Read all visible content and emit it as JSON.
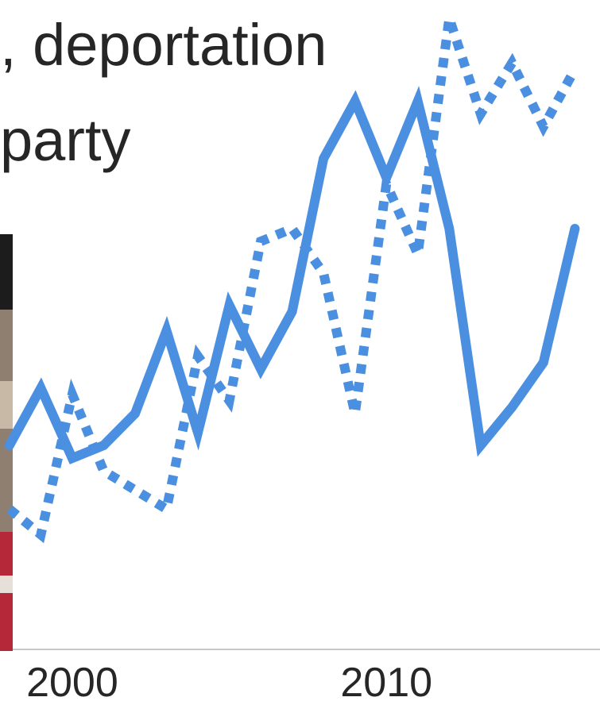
{
  "headline": {
    "line1": ", deportation",
    "line2": "party"
  },
  "photo": {
    "icon": "photo-strip-icon",
    "colors": [
      "#1c1c1c",
      "#8f7f70",
      "#c8b8a6",
      "#b4283a",
      "#e6e0d8"
    ]
  },
  "colors": {
    "series": "#4a8fe0",
    "axis": "#c8c8c8",
    "tick_text": "#262626"
  },
  "chart_data": {
    "type": "line",
    "title": "",
    "xlabel": "",
    "ylabel": "",
    "x_ticks": [
      "2000",
      "2010"
    ],
    "xlim": [
      1997.7,
      2016.8
    ],
    "ylim": [
      0,
      100
    ],
    "grid": false,
    "legend": "none",
    "series": [
      {
        "style": "solid",
        "points": [
          {
            "x": 1998,
            "y": 32
          },
          {
            "x": 1999,
            "y": 41
          },
          {
            "x": 2000,
            "y": 30
          },
          {
            "x": 2001,
            "y": 32
          },
          {
            "x": 2002,
            "y": 37
          },
          {
            "x": 2003,
            "y": 50
          },
          {
            "x": 2004,
            "y": 34
          },
          {
            "x": 2005,
            "y": 54
          },
          {
            "x": 2006,
            "y": 44
          },
          {
            "x": 2007,
            "y": 53
          },
          {
            "x": 2008,
            "y": 77
          },
          {
            "x": 2009,
            "y": 86
          },
          {
            "x": 2010,
            "y": 74
          },
          {
            "x": 2011,
            "y": 86
          },
          {
            "x": 2012,
            "y": 66
          },
          {
            "x": 2013,
            "y": 32
          },
          {
            "x": 2014,
            "y": 38
          },
          {
            "x": 2015,
            "y": 45
          },
          {
            "x": 2016,
            "y": 66
          }
        ]
      },
      {
        "style": "dashed",
        "points": [
          {
            "x": 1998,
            "y": 22
          },
          {
            "x": 1999,
            "y": 18
          },
          {
            "x": 2000,
            "y": 40
          },
          {
            "x": 2001,
            "y": 28
          },
          {
            "x": 2002,
            "y": 25
          },
          {
            "x": 2003,
            "y": 22
          },
          {
            "x": 2004,
            "y": 46
          },
          {
            "x": 2005,
            "y": 39
          },
          {
            "x": 2006,
            "y": 64
          },
          {
            "x": 2007,
            "y": 66
          },
          {
            "x": 2008,
            "y": 59
          },
          {
            "x": 2009,
            "y": 37
          },
          {
            "x": 2010,
            "y": 73
          },
          {
            "x": 2011,
            "y": 62
          },
          {
            "x": 2012,
            "y": 99
          },
          {
            "x": 2013,
            "y": 84
          },
          {
            "x": 2014,
            "y": 92
          },
          {
            "x": 2015,
            "y": 82
          },
          {
            "x": 2016,
            "y": 91
          }
        ]
      }
    ]
  }
}
